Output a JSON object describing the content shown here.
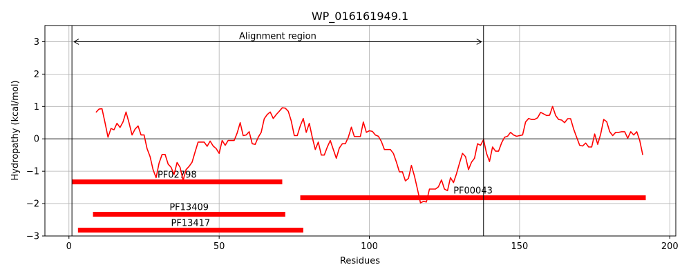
{
  "chart_data": {
    "type": "line",
    "title": "WP_016161949.1",
    "xlabel": "Residues",
    "ylabel": "Hydropathy (kcal/mol)",
    "xlim": [
      -8,
      202
    ],
    "ylim": [
      -3,
      3.5
    ],
    "xticks": [
      0,
      50,
      100,
      150,
      200
    ],
    "yticks": [
      -3,
      -2,
      -1,
      0,
      1,
      2,
      3
    ],
    "grid": true,
    "hydropathy_series": {
      "name": "",
      "color": "#ff0000",
      "x": [
        9,
        10,
        11,
        12,
        13,
        14,
        15,
        16,
        17,
        18,
        19,
        20,
        21,
        22,
        23,
        24,
        25,
        26,
        27,
        28,
        29,
        30,
        31,
        32,
        33,
        34,
        35,
        36,
        37,
        38,
        39,
        40,
        41,
        42,
        43,
        44,
        45,
        46,
        47,
        48,
        49,
        50,
        51,
        52,
        53,
        54,
        55,
        56,
        57,
        58,
        59,
        60,
        61,
        62,
        63,
        64,
        65,
        66,
        67,
        68,
        69,
        70,
        71,
        72,
        73,
        74,
        75,
        76,
        77,
        78,
        79,
        80,
        81,
        82,
        83,
        84,
        85,
        86,
        87,
        88,
        89,
        90,
        91,
        92,
        93,
        94,
        95,
        96,
        97,
        98,
        99,
        100,
        101,
        102,
        103,
        104,
        105,
        106,
        107,
        108,
        109,
        110,
        111,
        112,
        113,
        114,
        115,
        116,
        117,
        118,
        119,
        120,
        121,
        122,
        123,
        124,
        125,
        126,
        127,
        128,
        129,
        130,
        131,
        132,
        133,
        134,
        135,
        136,
        137,
        138,
        139,
        140,
        141,
        142,
        143,
        144,
        145,
        146,
        147,
        148,
        149,
        150,
        151,
        152,
        153,
        154,
        155,
        156,
        157,
        158,
        159,
        160,
        161,
        162,
        163,
        164,
        165,
        166,
        167,
        168,
        169,
        170,
        171,
        172,
        173,
        174,
        175,
        176,
        177,
        178,
        179,
        180,
        181,
        182,
        183,
        184,
        185,
        186,
        187,
        188,
        189,
        190,
        191
      ],
      "y": [
        0.82,
        0.92,
        0.93,
        0.5,
        0.05,
        0.32,
        0.28,
        0.48,
        0.35,
        0.52,
        0.83,
        0.5,
        0.12,
        0.3,
        0.4,
        0.12,
        0.12,
        -0.3,
        -0.55,
        -0.95,
        -1.2,
        -0.75,
        -0.48,
        -0.48,
        -0.78,
        -0.88,
        -1.1,
        -0.73,
        -0.88,
        -1.28,
        -0.95,
        -0.85,
        -0.72,
        -0.4,
        -0.1,
        -0.1,
        -0.1,
        -0.23,
        -0.07,
        -0.22,
        -0.3,
        -0.45,
        -0.05,
        -0.2,
        -0.05,
        -0.05,
        -0.05,
        0.18,
        0.5,
        0.1,
        0.12,
        0.22,
        -0.15,
        -0.17,
        0.05,
        0.2,
        0.62,
        0.75,
        0.83,
        0.63,
        0.75,
        0.85,
        0.96,
        0.95,
        0.85,
        0.55,
        0.1,
        0.1,
        0.4,
        0.63,
        0.2,
        0.48,
        0.05,
        -0.33,
        -0.1,
        -0.5,
        -0.5,
        -0.25,
        -0.05,
        -0.33,
        -0.6,
        -0.28,
        -0.15,
        -0.15,
        0.05,
        0.36,
        0.07,
        0.07,
        0.07,
        0.52,
        0.2,
        0.25,
        0.23,
        0.12,
        0.08,
        -0.08,
        -0.33,
        -0.33,
        -0.33,
        -0.45,
        -0.72,
        -1.02,
        -1.02,
        -1.3,
        -1.22,
        -0.82,
        -1.15,
        -1.55,
        -1.98,
        -1.93,
        -1.95,
        -1.55,
        -1.55,
        -1.55,
        -1.48,
        -1.27,
        -1.55,
        -1.6,
        -1.2,
        -1.35,
        -1.08,
        -0.75,
        -0.45,
        -0.55,
        -0.95,
        -0.72,
        -0.6,
        -0.15,
        -0.2,
        -0.02,
        -0.45,
        -0.7,
        -0.25,
        -0.38,
        -0.38,
        -0.13,
        0.05,
        0.08,
        0.2,
        0.12,
        0.08,
        0.1,
        0.12,
        0.52,
        0.63,
        0.6,
        0.6,
        0.65,
        0.82,
        0.77,
        0.72,
        0.73,
        1.0,
        0.72,
        0.6,
        0.58,
        0.5,
        0.62,
        0.62,
        0.3,
        0.05,
        -0.2,
        -0.22,
        -0.13,
        -0.25,
        -0.25,
        0.15,
        -0.17,
        0.15,
        0.6,
        0.53,
        0.22,
        0.1,
        0.2,
        0.2,
        0.22,
        0.22,
        0.02,
        0.22,
        0.12,
        0.22,
        -0.05,
        -0.5
      ]
    },
    "domains": [
      {
        "label": "PF02798",
        "start": 1,
        "end": 71,
        "y": -1.33
      },
      {
        "label": "PF00043",
        "start": 77,
        "end": 192,
        "y": -1.82
      },
      {
        "label": "PF13409",
        "start": 8,
        "end": 72,
        "y": -2.33
      },
      {
        "label": "PF13417",
        "start": 3,
        "end": 78,
        "y": -2.82
      }
    ],
    "alignment_region": {
      "label": "Alignment region",
      "start": 1,
      "end": 138,
      "arrow_y": 3.0
    },
    "domain_color": "#ff0000"
  }
}
